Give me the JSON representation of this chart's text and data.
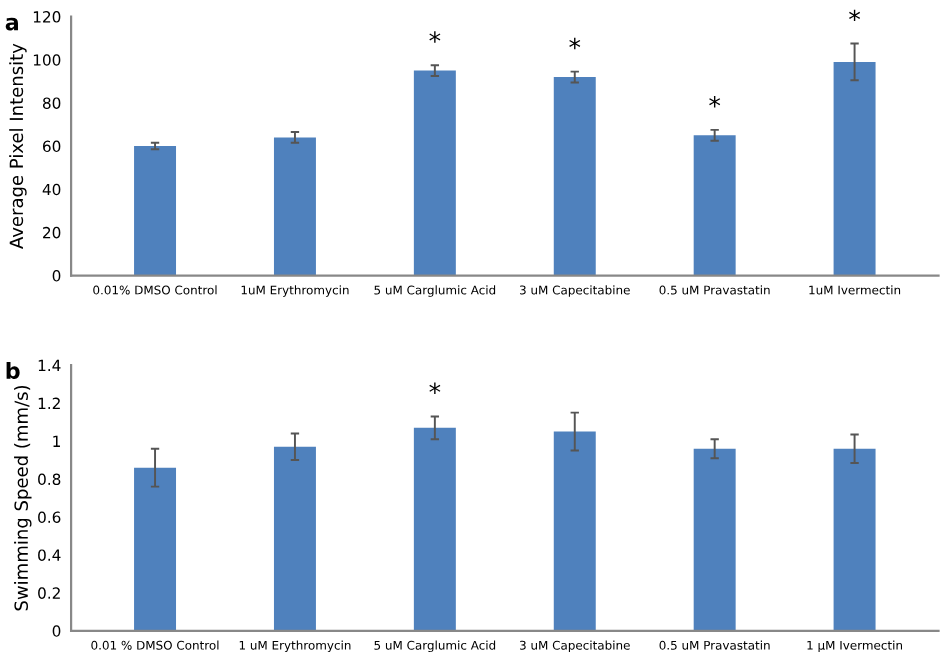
{
  "chart_data": [
    {
      "type": "bar",
      "ylabel": "Average Pixel Intensity",
      "categories": [
        "0.01% DMSO Control",
        "1uM Erythromycin",
        "5 uM Carglumic Acid",
        "3 uM Capecitabine",
        "0.5 uM Pravastatin",
        "1uM Ivermectin"
      ],
      "series": [
        {
          "color": "#4f81bd",
          "values": [
            60,
            64,
            95,
            92,
            65,
            99
          ],
          "errors": [
            1.5,
            2.5,
            2.5,
            2.5,
            2.5,
            8.5
          ]
        }
      ],
      "ylim": [
        0,
        120
      ],
      "yticks": [
        0,
        20,
        40,
        60,
        80,
        100,
        120
      ],
      "grid": false,
      "annotations": [
        "a",
        {
          "text": "*",
          "x": "5 uM Carglumic Acid",
          "y": 95
        },
        {
          "text": "*",
          "x": "3 uM Capecitabine",
          "y": 92
        },
        {
          "text": "*",
          "x": "0.5 uM Pravastatin",
          "y": 65
        },
        {
          "text": "*",
          "x": "1uM Ivermectin",
          "y": 99
        }
      ]
    },
    {
      "type": "bar",
      "ylabel": "Swimming Speed (mm/s)",
      "categories": [
        "0.01 % DMSO Control",
        "1 uM Erythromycin",
        "5 uM Carglumic Acid",
        "3 uM Capecitabine",
        "0.5 uM Pravastatin",
        "1 µM Ivermectin"
      ],
      "series": [
        {
          "color": "#4f81bd",
          "values": [
            0.86,
            0.97,
            1.07,
            1.05,
            0.96,
            0.96
          ],
          "errors": [
            0.1,
            0.07,
            0.06,
            0.1,
            0.05,
            0.075
          ]
        }
      ],
      "ylim": [
        0,
        1.4
      ],
      "yticks": [
        0,
        0.2,
        0.4,
        0.6,
        0.8,
        1,
        1.2,
        1.4
      ],
      "grid": false,
      "annotations": [
        "b",
        {
          "text": "*",
          "x": "5 uM Carglumic Acid",
          "y": 1.07
        }
      ]
    }
  ]
}
